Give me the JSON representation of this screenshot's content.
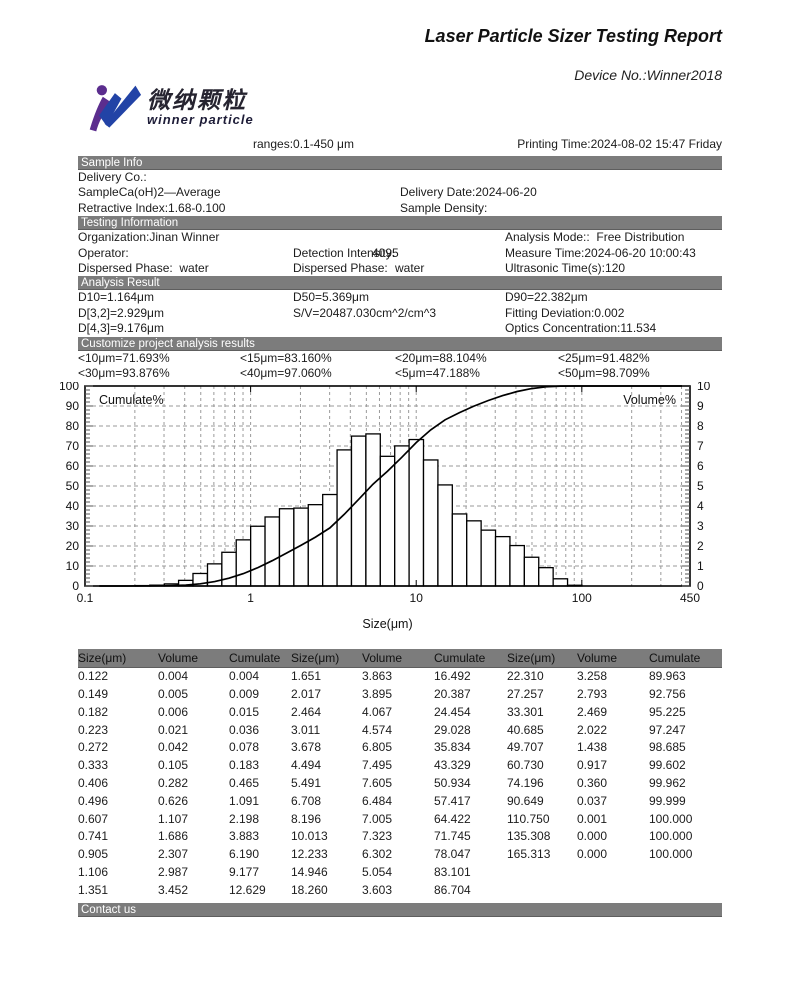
{
  "header": {
    "title": "Laser Particle Sizer Testing Report",
    "device_no": "Device No.:Winner2018"
  },
  "logo": {
    "chinese": "微纳颗粒",
    "english": "winner particle",
    "purple": "#5b2d8e",
    "blue": "#2243a6"
  },
  "meta": {
    "ranges": "ranges:0.1-450 μm",
    "printing_time": "Printing Time:2024-08-02 15:47 Friday"
  },
  "sections": {
    "sample_info": {
      "title": "Sample Info",
      "line1": "Delivery Co.:",
      "line2_left": "SampleCa(oH)2—Average",
      "line2_right": "Delivery Date:2024-06-20",
      "line3_left": "Retractive Index:1.68-0.100",
      "line3_right": "Sample Density:"
    },
    "testing_info": {
      "title": "Testing Information",
      "r1c1": "Organization:Jinan Winner",
      "r1c3": "Analysis Mode::  Free Distribution",
      "r2c1": "Operator:",
      "r2c2_label": "Detection Intensity:",
      "r2c2_value": "4095",
      "r2c3": "Measure Time:2024-06-20 10:00:43",
      "r3c1": "Dispersed Phase:  water",
      "r3c2_label": "Dispersed Phase:",
      "r3c2_value": "water",
      "r3c3": "Ultrasonic Time(s):120"
    },
    "analysis_result": {
      "title": "Analysis Result",
      "r1c1": "D10=1.164μm",
      "r1c2": "D50=5.369μm",
      "r1c3": "D90=22.382μm",
      "r2c1": "D[3,2]=2.929μm",
      "r2c2": "S/V=20487.030cm^2/cm^3",
      "r2c3": "Fitting Deviation:0.002",
      "r3c1": "D[4,3]=9.176μm",
      "r3c3": "Optics Concentration:11.534"
    },
    "customize": {
      "title": "Customize project analysis results",
      "r1c1": "<10μm=71.693%",
      "r1c2": "<15μm=83.160%",
      "r1c3": "<20μm=88.104%",
      "r1c4": "<25μm=91.482%",
      "r2c1": "<30μm=93.876%",
      "r2c2": "<40μm=97.060%",
      "r2c3": "<5μm=47.188%",
      "r2c4": "<50μm=98.709%"
    },
    "contact": {
      "title": "Contact us"
    }
  },
  "chart_data": {
    "type": "bar",
    "subtype": "log-histogram with cumulative line overlay",
    "title": "",
    "xlabel": "Size(μm)",
    "x_scale": "log",
    "x_range": [
      0.1,
      450
    ],
    "x_tick_labels": [
      "0.1",
      "1",
      "10",
      "100",
      "450"
    ],
    "x_tick_values": [
      0.1,
      1,
      10,
      100,
      450
    ],
    "left_axis": {
      "label": "Cumulate%",
      "min": 0,
      "max": 100,
      "step": 10
    },
    "right_axis": {
      "label": "Volume%",
      "min": 0,
      "max": 10,
      "step": 1
    },
    "grid": "dashed gray, horizontal every 10%, vertical at log subdivisions",
    "legend_position": "labels inside plot top-left and top-right",
    "x": [
      0.122,
      0.149,
      0.182,
      0.223,
      0.272,
      0.333,
      0.406,
      0.496,
      0.607,
      0.741,
      0.905,
      1.106,
      1.351,
      1.651,
      2.017,
      2.464,
      3.011,
      3.678,
      4.494,
      5.491,
      6.708,
      8.196,
      10.013,
      12.233,
      14.946,
      18.26,
      22.31,
      27.257,
      33.301,
      40.685,
      49.707,
      60.73,
      74.196,
      90.649,
      110.75,
      135.308,
      165.313
    ],
    "series": [
      {
        "name": "Volume%",
        "type": "bar",
        "values": [
          0.004,
          0.005,
          0.006,
          0.021,
          0.042,
          0.105,
          0.282,
          0.626,
          1.107,
          1.686,
          2.307,
          2.987,
          3.452,
          3.863,
          3.895,
          4.067,
          4.574,
          6.805,
          7.495,
          7.605,
          6.484,
          7.005,
          7.323,
          6.302,
          5.054,
          3.603,
          3.258,
          2.793,
          2.469,
          2.022,
          1.438,
          0.917,
          0.36,
          0.037,
          0.001,
          0.0,
          0.0
        ]
      },
      {
        "name": "Cumulate%",
        "type": "line",
        "values": [
          0.004,
          0.009,
          0.015,
          0.036,
          0.078,
          0.183,
          0.465,
          1.091,
          2.198,
          3.883,
          6.19,
          9.177,
          12.629,
          16.492,
          20.387,
          24.454,
          29.028,
          35.834,
          43.329,
          50.934,
          57.417,
          64.422,
          71.745,
          78.047,
          83.101,
          86.704,
          89.963,
          92.756,
          95.225,
          97.247,
          98.685,
          99.602,
          99.962,
          99.999,
          100.0,
          100.0,
          100.0
        ]
      }
    ],
    "bar_fill": "#ffffff",
    "bar_stroke": "#000000",
    "line_color": "#000000"
  },
  "table": {
    "headers": [
      "Size(μm)",
      "Volume",
      "Cumulate",
      "Size(μm)",
      "Volume",
      "Cumulate",
      "Size(μm)",
      "Volume",
      "Cumulate"
    ],
    "rows": [
      [
        "0.122",
        "0.004",
        "0.004",
        "1.651",
        "3.863",
        "16.492",
        "22.310",
        "3.258",
        "89.963"
      ],
      [
        "0.149",
        "0.005",
        "0.009",
        "2.017",
        "3.895",
        "20.387",
        "27.257",
        "2.793",
        "92.756"
      ],
      [
        "0.182",
        "0.006",
        "0.015",
        "2.464",
        "4.067",
        "24.454",
        "33.301",
        "2.469",
        "95.225"
      ],
      [
        "0.223",
        "0.021",
        "0.036",
        "3.011",
        "4.574",
        "29.028",
        "40.685",
        "2.022",
        "97.247"
      ],
      [
        "0.272",
        "0.042",
        "0.078",
        "3.678",
        "6.805",
        "35.834",
        "49.707",
        "1.438",
        "98.685"
      ],
      [
        "0.333",
        "0.105",
        "0.183",
        "4.494",
        "7.495",
        "43.329",
        "60.730",
        "0.917",
        "99.602"
      ],
      [
        "0.406",
        "0.282",
        "0.465",
        "5.491",
        "7.605",
        "50.934",
        "74.196",
        "0.360",
        "99.962"
      ],
      [
        "0.496",
        "0.626",
        "1.091",
        "6.708",
        "6.484",
        "57.417",
        "90.649",
        "0.037",
        "99.999"
      ],
      [
        "0.607",
        "1.107",
        "2.198",
        "8.196",
        "7.005",
        "64.422",
        "110.750",
        "0.001",
        "100.000"
      ],
      [
        "0.741",
        "1.686",
        "3.883",
        "10.013",
        "7.323",
        "71.745",
        "135.308",
        "0.000",
        "100.000"
      ],
      [
        "0.905",
        "2.307",
        "6.190",
        "12.233",
        "6.302",
        "78.047",
        "165.313",
        "0.000",
        "100.000"
      ],
      [
        "1.106",
        "2.987",
        "9.177",
        "14.946",
        "5.054",
        "83.101",
        "",
        "",
        ""
      ],
      [
        "1.351",
        "3.452",
        "12.629",
        "18.260",
        "3.603",
        "86.704",
        "",
        "",
        ""
      ]
    ]
  }
}
